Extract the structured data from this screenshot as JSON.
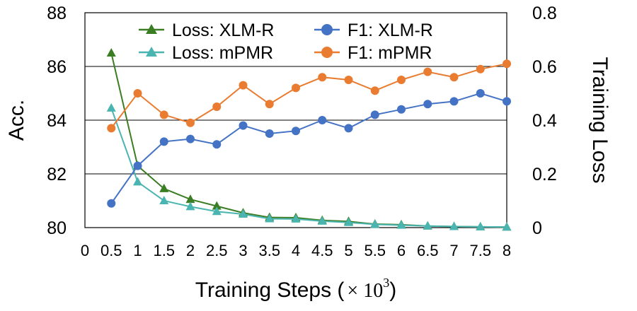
{
  "chart_data": {
    "type": "line",
    "x": [
      0.5,
      1,
      1.5,
      2,
      2.5,
      3,
      3.5,
      4,
      4.5,
      5,
      5.5,
      6,
      6.5,
      7,
      7.5,
      8
    ],
    "x_ticks": [
      "0",
      "0.5",
      "1",
      "1.5",
      "2",
      "2.5",
      "3",
      "3.5",
      "4",
      "4.5",
      "5",
      "5.5",
      "6",
      "6.5",
      "7",
      "7.5",
      "8"
    ],
    "xlabel": "Training Steps (",
    "xlabel_math": "× 10",
    "xlabel_sup": "3",
    "xlabel_close": ")",
    "xlim": [
      0,
      8
    ],
    "y_left": {
      "label": "Acc.",
      "range": [
        80,
        88
      ],
      "ticks": [
        "80",
        "82",
        "84",
        "86",
        "88"
      ]
    },
    "y_right": {
      "label": "Training Loss",
      "range": [
        0,
        0.8
      ],
      "ticks": [
        "0",
        "0.2",
        "0.4",
        "0.6",
        "0.8"
      ]
    },
    "grid": "horizontal",
    "legend_position": "top",
    "series": [
      {
        "name": "Loss: XLM-R",
        "axis": "right",
        "marker": "triangle",
        "color": "#3b7d23",
        "values": [
          0.65,
          0.23,
          0.145,
          0.105,
          0.08,
          0.055,
          0.038,
          0.037,
          0.027,
          0.023,
          0.013,
          0.011,
          0.006,
          0.004,
          0.003,
          0.002
        ]
      },
      {
        "name": "Loss: mPMR",
        "axis": "right",
        "marker": "triangle",
        "color": "#4ab5b0",
        "values": [
          0.445,
          0.17,
          0.1,
          0.078,
          0.06,
          0.05,
          0.033,
          0.032,
          0.024,
          0.019,
          0.012,
          0.009,
          0.006,
          0.004,
          0.003,
          0.002
        ]
      },
      {
        "name": "F1: XLM-R",
        "axis": "left",
        "marker": "circle",
        "color": "#4472c4",
        "values": [
          80.9,
          82.3,
          83.2,
          83.3,
          83.1,
          83.8,
          83.5,
          83.6,
          84.0,
          83.7,
          84.2,
          84.4,
          84.6,
          84.7,
          85.0,
          84.7
        ]
      },
      {
        "name": "F1: mPMR",
        "axis": "left",
        "marker": "circle",
        "color": "#e97c30",
        "values": [
          83.7,
          85.0,
          84.2,
          83.9,
          84.5,
          85.3,
          84.6,
          85.2,
          85.6,
          85.5,
          85.1,
          85.5,
          85.8,
          85.6,
          85.9,
          86.1
        ]
      }
    ]
  }
}
